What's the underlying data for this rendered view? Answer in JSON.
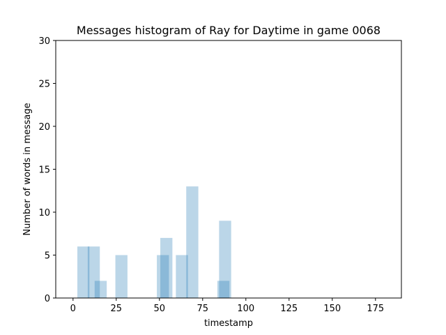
{
  "chart_data": {
    "type": "bar",
    "title": "Messages histogram of Ray for Daytime in game 0068",
    "xlabel": "timestamp",
    "ylabel": "Number of words in message",
    "xlim": [
      -10,
      190
    ],
    "ylim": [
      0,
      30
    ],
    "xticks": [
      0,
      25,
      50,
      75,
      100,
      125,
      150,
      175
    ],
    "yticks": [
      0,
      5,
      10,
      15,
      20,
      25,
      30
    ],
    "grid": false,
    "bar_color": "#1f77b4",
    "bar_alpha": 0.3,
    "bars": [
      {
        "x": 6,
        "width": 7,
        "value": 6
      },
      {
        "x": 12,
        "width": 7,
        "value": 6
      },
      {
        "x": 16,
        "width": 7,
        "value": 2
      },
      {
        "x": 28,
        "width": 7,
        "value": 5
      },
      {
        "x": 52,
        "width": 7,
        "value": 5
      },
      {
        "x": 54,
        "width": 7,
        "value": 7
      },
      {
        "x": 63,
        "width": 7,
        "value": 5
      },
      {
        "x": 69,
        "width": 7,
        "value": 13
      },
      {
        "x": 87,
        "width": 7,
        "value": 2
      },
      {
        "x": 88,
        "width": 7,
        "value": 9
      }
    ]
  }
}
